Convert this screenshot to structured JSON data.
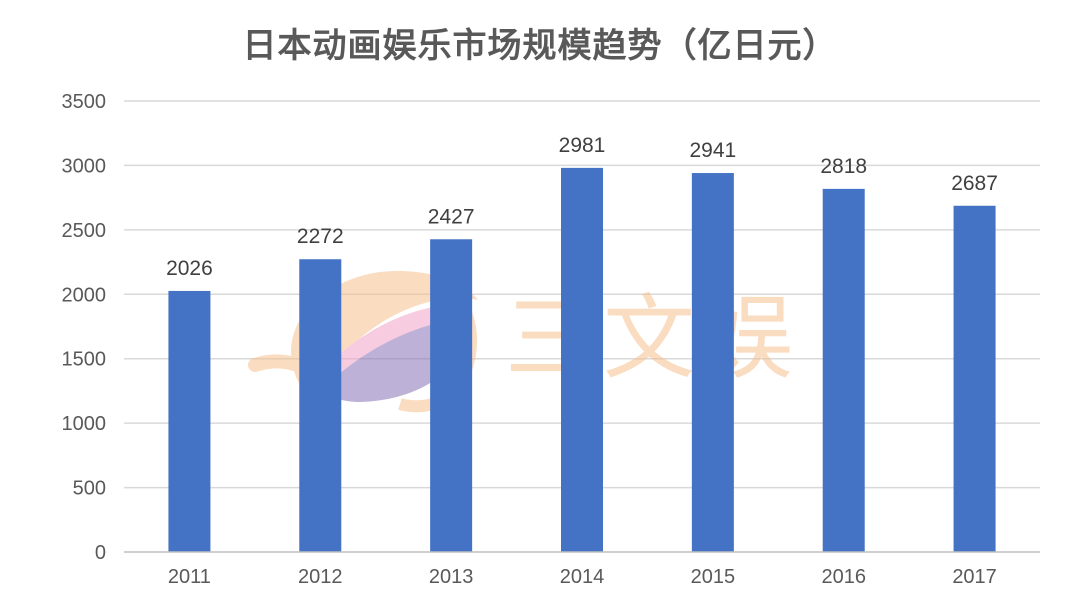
{
  "title": "日本动画娱乐市场规模趋势（亿日元）",
  "colors": {
    "bar": "#4472c4",
    "grid": "#d9d9d9",
    "text": "#595959",
    "watermark_orange": "#f6c08f",
    "watermark_pink": "#f4a3c8",
    "watermark_purple": "#8a72b8"
  },
  "watermark": {
    "text": "三文娱",
    "icon": "sanwenyu-logo-icon"
  },
  "chart_data": {
    "type": "bar",
    "title": "日本动画娱乐市场规模趋势（亿日元）",
    "xlabel": "",
    "ylabel": "",
    "categories": [
      "2011",
      "2012",
      "2013",
      "2014",
      "2015",
      "2016",
      "2017"
    ],
    "values": [
      2026,
      2272,
      2427,
      2981,
      2941,
      2818,
      2687
    ],
    "ylim": [
      0,
      3500
    ],
    "yticks": [
      0,
      500,
      1000,
      1500,
      2000,
      2500,
      3000,
      3500
    ],
    "grid": true,
    "legend": "none",
    "data_labels": true
  }
}
